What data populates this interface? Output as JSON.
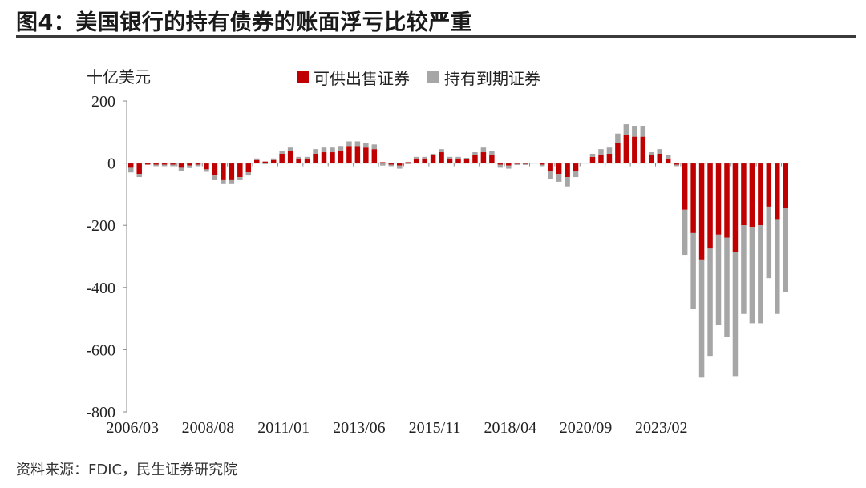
{
  "title": "图4：美国银行的持有债券的账面浮亏比较严重",
  "source": "资料来源：FDIC，民生证券研究院",
  "chart_data": {
    "type": "bar",
    "stacked": true,
    "unit_label": "十亿美元",
    "ylim": [
      -800,
      200
    ],
    "yticks": [
      200,
      0,
      -200,
      -400,
      -600,
      -800
    ],
    "ytick_labels": [
      "200",
      "0",
      "-200",
      "-400",
      "-600",
      "-800"
    ],
    "xtick_labels": [
      "2006/03",
      "2008/08",
      "2011/01",
      "2013/06",
      "2015/11",
      "2018/04",
      "2020/09",
      "2023/02"
    ],
    "xtick_index": [
      0,
      9,
      18,
      27,
      36,
      45,
      54,
      63
    ],
    "legend_position": "top",
    "series": [
      {
        "name": "可供出售证券",
        "color": "#C00000",
        "values": [
          -15,
          -35,
          -5,
          -5,
          -5,
          -5,
          -15,
          -8,
          -5,
          -20,
          -40,
          -55,
          -55,
          -45,
          -30,
          10,
          5,
          10,
          30,
          40,
          15,
          15,
          30,
          35,
          35,
          40,
          55,
          55,
          50,
          45,
          3,
          -5,
          -8,
          3,
          15,
          15,
          25,
          35,
          15,
          15,
          12,
          25,
          35,
          25,
          -5,
          -8,
          -3,
          -3,
          0,
          -5,
          -25,
          -35,
          -45,
          -25,
          0,
          20,
          25,
          30,
          65,
          90,
          85,
          85,
          25,
          30,
          15,
          -5,
          -150,
          -225,
          -310,
          -275,
          -230,
          -240,
          -285,
          -200,
          -205,
          -200,
          -140,
          -180,
          -145
        ]
      },
      {
        "name": "持有到期证券",
        "color": "#A6A6A6",
        "values": [
          -15,
          -10,
          0,
          -5,
          -5,
          -5,
          -10,
          -8,
          -5,
          -8,
          -15,
          -10,
          -10,
          -10,
          -10,
          5,
          -3,
          5,
          10,
          10,
          5,
          5,
          15,
          15,
          15,
          15,
          15,
          15,
          15,
          15,
          -8,
          -5,
          -10,
          -3,
          5,
          5,
          5,
          10,
          5,
          5,
          5,
          10,
          15,
          15,
          -10,
          -10,
          -3,
          -3,
          0,
          -5,
          -25,
          -25,
          -30,
          -20,
          0,
          10,
          20,
          20,
          30,
          35,
          35,
          35,
          10,
          15,
          10,
          -5,
          -145,
          -245,
          -380,
          -345,
          -290,
          -320,
          -400,
          -285,
          -310,
          -315,
          -230,
          -305,
          -270
        ]
      }
    ]
  }
}
